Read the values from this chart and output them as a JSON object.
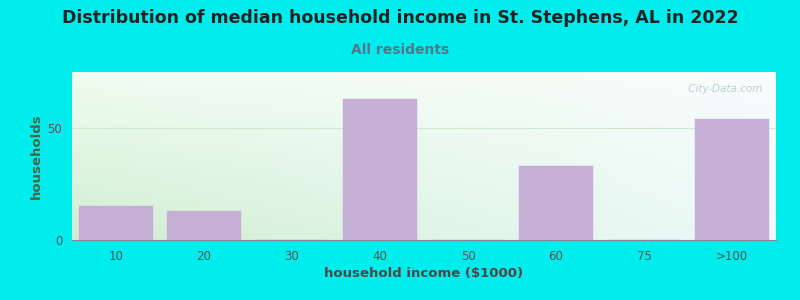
{
  "title": "Distribution of median household income in St. Stephens, AL in 2022",
  "subtitle": "All residents",
  "xlabel": "household income ($1000)",
  "ylabel": "households",
  "categories": [
    "10",
    "20",
    "30",
    "40",
    "50",
    "60",
    "75",
    ">100"
  ],
  "values": [
    15,
    13,
    0,
    63,
    0,
    33,
    0,
    54
  ],
  "bar_color": "#c5afd4",
  "bar_edge_color": "#c5afd4",
  "background_color": "#00eded",
  "plot_bg_topleft": "#d6edd6",
  "plot_bg_topright": "#f0f8f8",
  "plot_bg_bottomleft": "#d6edd6",
  "plot_bg_bottomright": "#f0f8f8",
  "title_fontsize": 12.5,
  "subtitle_fontsize": 10,
  "axis_label_fontsize": 9.5,
  "tick_fontsize": 8.5,
  "ylim": [
    0,
    75
  ],
  "yticks": [
    0,
    50
  ],
  "watermark": " City-Data.com",
  "watermark_color": "#b0c8c8",
  "subtitle_color": "#557788",
  "ylabel_color": "#446644",
  "xlabel_color": "#554444",
  "title_color": "#222222",
  "tick_color": "#555555",
  "hline_color": "#d0e8d0",
  "spine_color": "#888888"
}
